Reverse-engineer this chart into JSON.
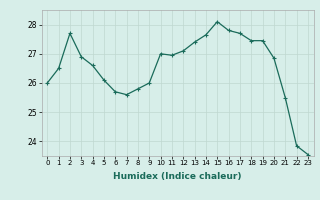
{
  "x": [
    0,
    1,
    2,
    3,
    4,
    5,
    6,
    7,
    8,
    9,
    10,
    11,
    12,
    13,
    14,
    15,
    16,
    17,
    18,
    19,
    20,
    21,
    22,
    23
  ],
  "y": [
    26.0,
    26.5,
    27.7,
    26.9,
    26.6,
    26.1,
    25.7,
    25.6,
    25.8,
    26.0,
    27.0,
    26.95,
    27.1,
    27.4,
    27.65,
    28.1,
    27.8,
    27.7,
    27.45,
    27.45,
    26.85,
    25.5,
    23.85,
    23.55
  ],
  "line_color": "#1a6b5a",
  "marker": "+",
  "marker_size": 3,
  "marker_linewidth": 0.8,
  "bg_color": "#d7eee9",
  "grid_color": "#c0d8d0",
  "xlabel": "Humidex (Indice chaleur)",
  "ylim": [
    23.5,
    28.5
  ],
  "xlim": [
    -0.5,
    23.5
  ],
  "yticks": [
    24,
    25,
    26,
    27,
    28
  ],
  "xticks": [
    0,
    1,
    2,
    3,
    4,
    5,
    6,
    7,
    8,
    9,
    10,
    11,
    12,
    13,
    14,
    15,
    16,
    17,
    18,
    19,
    20,
    21,
    22,
    23
  ],
  "xtick_fontsize": 5,
  "ytick_fontsize": 5.5,
  "xlabel_fontsize": 6.5,
  "linewidth": 0.9
}
